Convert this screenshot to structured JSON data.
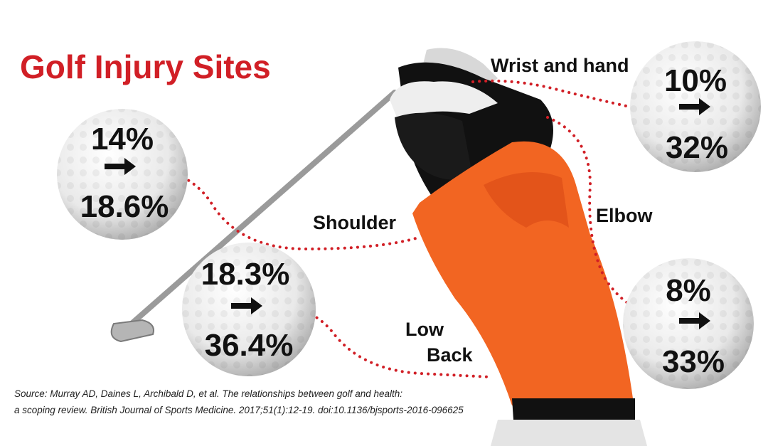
{
  "title": "Golf Injury Sites",
  "sites": [
    {
      "label": "Shoulder",
      "from": "14%",
      "to": "18.6%"
    },
    {
      "label": "Wrist and hand",
      "from": "10%",
      "to": "32%"
    },
    {
      "label": "Elbow",
      "from": "8%",
      "to": "33%"
    },
    {
      "label_lines": [
        "Low",
        "Back"
      ],
      "from": "18.3%",
      "to": "36.4%"
    }
  ],
  "source": [
    "Source: Murray AD, Daines L, Archibald D, et al. The relationships between golf and health:",
    "a scoping review. British Journal of Sports Medicine. 2017;51(1):12-19. doi:10.1136/bjsports-2016-096625"
  ]
}
